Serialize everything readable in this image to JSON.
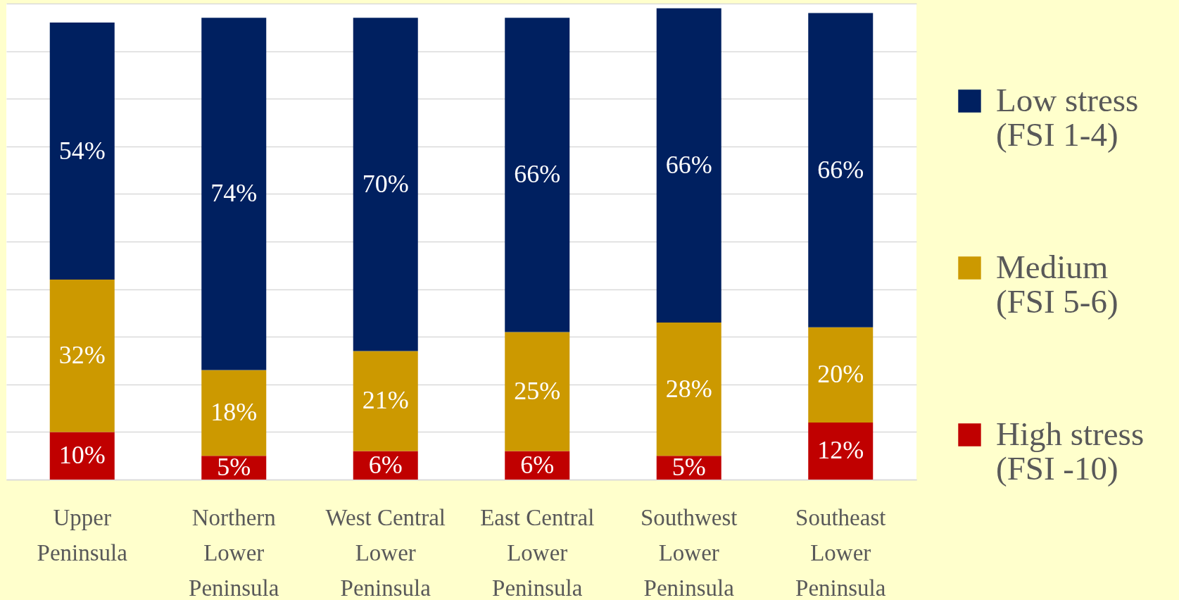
{
  "chart_data": {
    "type": "bar",
    "stacked": true,
    "grid": "y",
    "tick_labels": "x",
    "legend": "right",
    "categories": [
      "Upper Peninsula",
      "Northern Lower Peninsula",
      "West Central Lower Peninsula",
      "East Central Lower Peninsula",
      "Southwest Lower Peninsula",
      "Southeast Lower Peninsula"
    ],
    "series": [
      {
        "name": "High stress (FSI -10)",
        "color": "#c00000",
        "values": [
          10,
          5,
          6,
          6,
          5,
          12
        ],
        "value_labels": [
          "10%",
          "5%",
          "6%",
          "6%",
          "5%",
          "12%"
        ]
      },
      {
        "name": "Medium (FSI 5-6)",
        "color": "#cc9900",
        "values": [
          32,
          18,
          21,
          25,
          28,
          20
        ],
        "value_labels": [
          "32%",
          "18%",
          "21%",
          "25%",
          "28%",
          "20%"
        ]
      },
      {
        "name": "Low stress (FSI 1-4)",
        "color": "#002060",
        "values": [
          54,
          74,
          70,
          66,
          66,
          66
        ],
        "value_labels": [
          "54%",
          "74%",
          "70%",
          "66%",
          "66%",
          "66%"
        ]
      }
    ]
  }
}
